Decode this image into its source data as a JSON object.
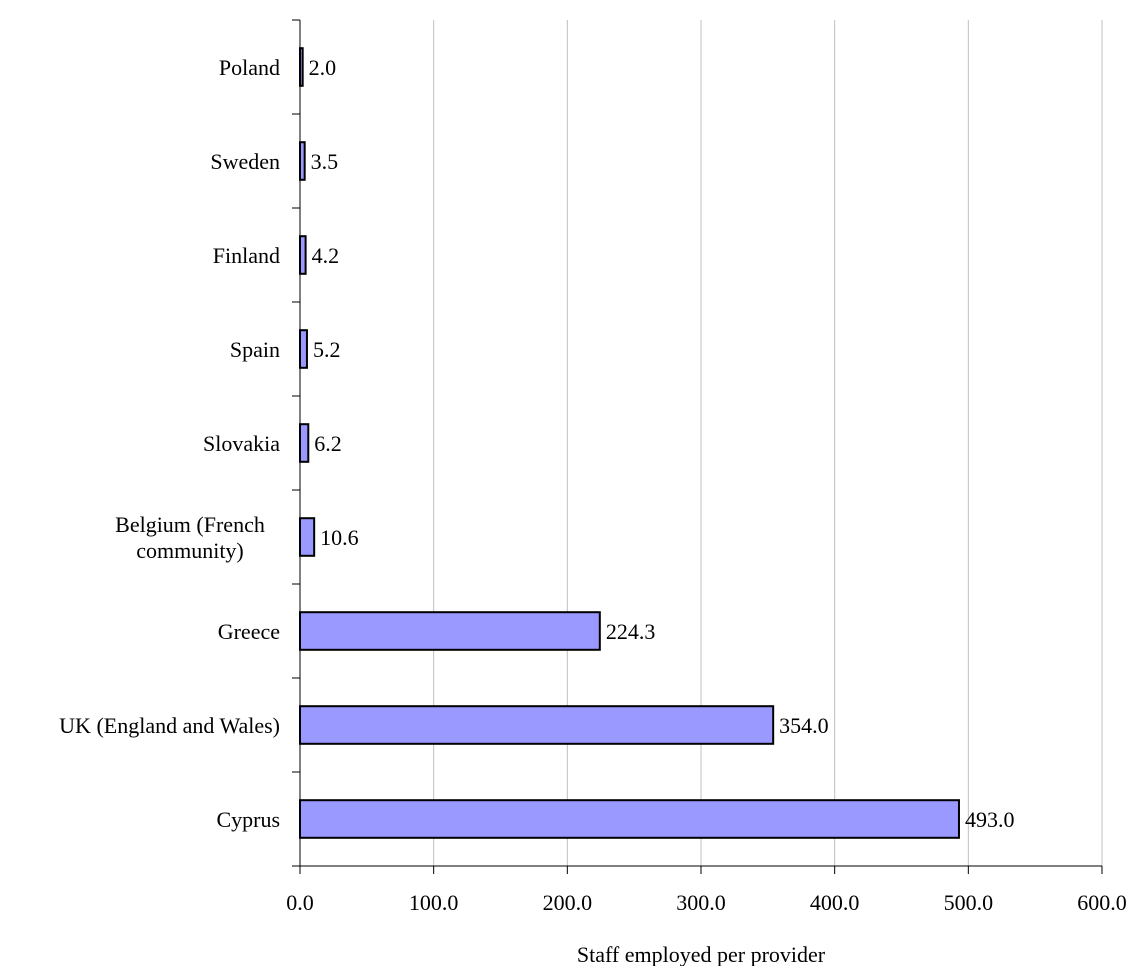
{
  "chart_data": {
    "type": "bar",
    "orientation": "horizontal",
    "categories": [
      "Poland",
      "Sweden",
      "Finland",
      "Spain",
      "Slovakia",
      [
        "Belgium (French",
        "community)"
      ],
      "Greece",
      "UK (England and Wales)",
      "Cyprus"
    ],
    "values": [
      2.0,
      3.5,
      4.2,
      5.2,
      6.2,
      10.6,
      224.3,
      354.0,
      493.0
    ],
    "data_labels": [
      "2.0",
      "3.5",
      "4.2",
      "5.2",
      "6.2",
      "10.6",
      "224.3",
      "354.0",
      "493.0"
    ],
    "xticks": [
      "0.0",
      "100.0",
      "200.0",
      "300.0",
      "400.0",
      "500.0",
      "600.0"
    ],
    "xlim": [
      0,
      600
    ],
    "xlabel": "Staff employed per provider",
    "ylabel": "",
    "title": "",
    "grid": "vertical",
    "legend": "none",
    "colors": {
      "bar_fill": "#9999ff",
      "bar_stroke": "#000000",
      "grid": "#c0c0c0",
      "axis": "#000000"
    }
  }
}
